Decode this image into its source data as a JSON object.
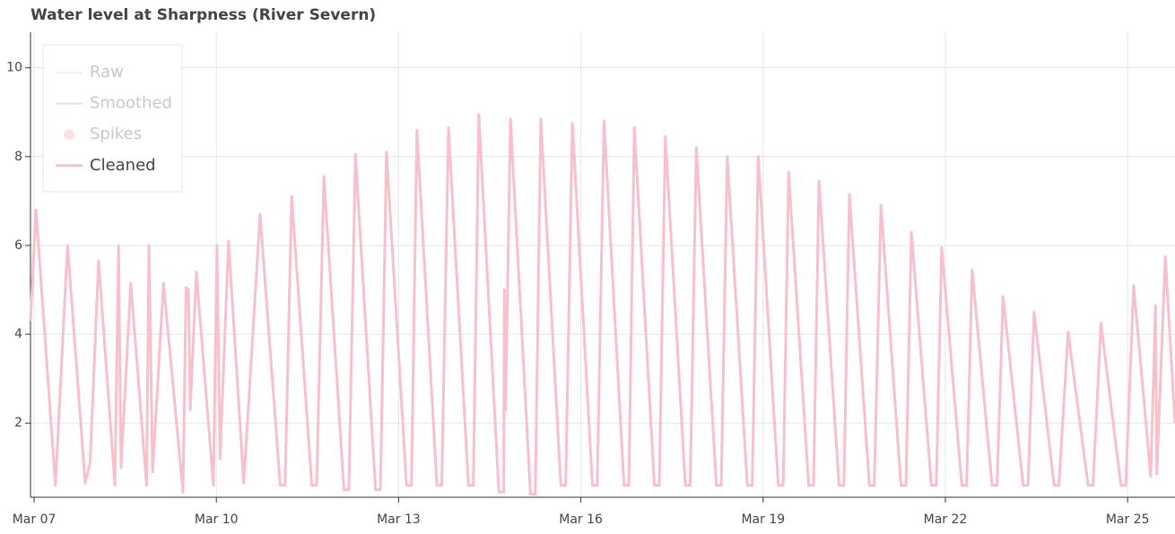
{
  "chart_data": {
    "type": "line",
    "title": "Water level at Sharpness (River Severn)",
    "x": [
      6.94,
      7.03,
      7.35,
      7.55,
      7.84,
      7.92,
      8.06,
      8.33,
      8.39,
      8.43,
      8.59,
      8.85,
      8.89,
      8.95,
      9.13,
      9.45,
      9.5,
      9.54,
      9.57,
      9.67,
      9.95,
      10.01,
      10.06,
      10.2,
      10.45,
      10.72,
      11.05,
      11.13,
      11.24,
      11.57,
      11.65,
      11.77,
      12.1,
      12.18,
      12.29,
      12.62,
      12.7,
      12.8,
      13.13,
      13.21,
      13.3,
      13.63,
      13.71,
      13.82,
      14.15,
      14.23,
      14.32,
      14.65,
      14.73,
      14.74,
      14.76,
      14.84,
      15.17,
      15.25,
      15.34,
      15.67,
      15.75,
      15.86,
      16.19,
      16.27,
      16.38,
      16.71,
      16.79,
      16.88,
      17.21,
      17.29,
      17.39,
      17.72,
      17.8,
      17.9,
      18.23,
      18.31,
      18.41,
      18.74,
      18.82,
      18.92,
      19.25,
      19.33,
      19.42,
      19.75,
      19.83,
      19.92,
      20.25,
      20.33,
      20.42,
      20.75,
      20.83,
      20.94,
      21.27,
      21.35,
      21.44,
      21.77,
      21.85,
      21.94,
      22.27,
      22.35,
      22.44,
      22.77,
      22.85,
      22.95,
      23.28,
      23.36,
      23.46,
      23.79,
      23.87,
      24.02,
      24.35,
      24.43,
      24.56,
      24.89,
      24.97,
      25.1,
      25.38,
      25.46,
      25.48,
      25.62,
      25.78
    ],
    "series": [
      {
        "name": "Cleaned",
        "color": "#f7c0cb",
        "values": [
          4.3,
          6.8,
          0.6,
          6.0,
          0.65,
          1.1,
          5.65,
          0.6,
          6.0,
          1.0,
          5.15,
          0.6,
          6.0,
          0.9,
          5.15,
          0.45,
          5.05,
          5.0,
          2.3,
          5.4,
          0.6,
          6.0,
          1.2,
          6.1,
          0.65,
          6.7,
          0.6,
          0.6,
          7.1,
          0.6,
          0.6,
          7.55,
          0.5,
          0.5,
          8.05,
          0.5,
          0.5,
          8.1,
          0.6,
          0.6,
          8.6,
          0.6,
          0.6,
          8.65,
          0.6,
          0.6,
          8.95,
          0.45,
          0.45,
          5.0,
          2.3,
          8.85,
          0.4,
          0.4,
          8.85,
          0.6,
          0.6,
          8.75,
          0.6,
          0.6,
          8.8,
          0.6,
          0.6,
          8.65,
          0.6,
          0.6,
          8.45,
          0.6,
          0.6,
          8.2,
          0.6,
          0.6,
          8.0,
          0.6,
          0.6,
          8.0,
          0.6,
          0.6,
          7.65,
          0.6,
          0.6,
          7.45,
          0.6,
          0.6,
          7.15,
          0.6,
          0.6,
          6.9,
          0.6,
          0.6,
          6.3,
          0.6,
          0.6,
          5.95,
          0.6,
          0.6,
          5.45,
          0.6,
          0.6,
          4.85,
          0.6,
          0.6,
          4.5,
          0.6,
          0.6,
          4.05,
          0.6,
          0.6,
          4.25,
          0.6,
          0.6,
          5.1,
          0.8,
          4.65,
          0.85,
          5.75,
          2.0
        ]
      }
    ],
    "legend_only": [
      {
        "name": "Raw",
        "color": "#d9d9d9",
        "glyph": "line"
      },
      {
        "name": "Smoothed",
        "color": "#a8a8f0",
        "glyph": "line"
      },
      {
        "name": "Spikes",
        "color": "#f4a8a8",
        "glyph": "circle"
      }
    ],
    "xlim": [
      6.94,
      25.78
    ],
    "ylim": [
      0.33,
      10.8
    ],
    "xticks": [
      {
        "value": 7,
        "label": "Mar 07"
      },
      {
        "value": 10,
        "label": "Mar 10"
      },
      {
        "value": 13,
        "label": "Mar 13"
      },
      {
        "value": 16,
        "label": "Mar 16"
      },
      {
        "value": 19,
        "label": "Mar 19"
      },
      {
        "value": 22,
        "label": "Mar 22"
      },
      {
        "value": 25,
        "label": "Mar 25"
      }
    ],
    "yticks": [
      2,
      4,
      6,
      8,
      10
    ],
    "grid": true,
    "legend": "top-left"
  }
}
